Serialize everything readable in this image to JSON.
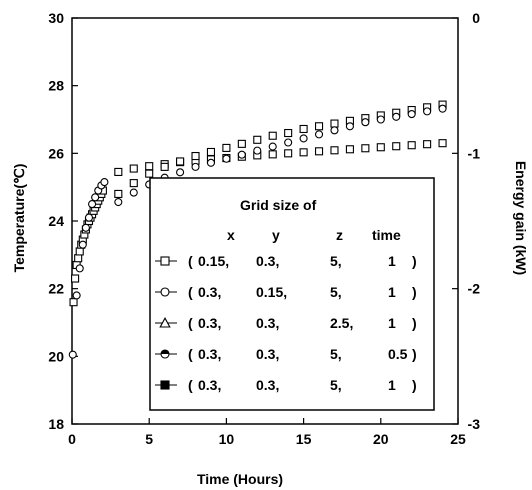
{
  "chart_data": {
    "type": "scatter",
    "xlabel": "Time (Hours)",
    "ylabel_left": "Temperature(℃)",
    "ylabel_right": "Energy  gain (kW)",
    "xlim": [
      0,
      25
    ],
    "ylim_left": [
      18,
      30
    ],
    "ylim_right": [
      -3,
      0
    ],
    "x_ticks": [
      "0",
      "5",
      "10",
      "15",
      "20",
      "25"
    ],
    "y_left_ticks": [
      "18",
      "20",
      "22",
      "24",
      "26",
      "28",
      "30"
    ],
    "y_right_ticks": [
      "-3",
      "-2",
      "-1",
      "0"
    ],
    "grid": false,
    "legend": {
      "placement": "lower-right",
      "title": "Grid size of",
      "header": [
        "x",
        "y",
        "z",
        "time"
      ],
      "rows": [
        {
          "marker": "square-open",
          "open": "(",
          "x": "0.15,",
          "y": "0.3,",
          "z": "5,",
          "t": "1",
          "close": ")"
        },
        {
          "marker": "circle-open",
          "open": "(",
          "x": "0.3,",
          "y": "0.15,",
          "z": "5,",
          "t": "1",
          "close": ")"
        },
        {
          "marker": "triangle-open",
          "open": "(",
          "x": "0.3,",
          "y": "0.3,",
          "z": "2.5,",
          "t": "1",
          "close": ")"
        },
        {
          "marker": "circle-half",
          "open": "(",
          "x": "0.3,",
          "y": "0.3,",
          "z": "5,",
          "t": "0.5",
          "close": ")"
        },
        {
          "marker": "square-filled",
          "open": "(",
          "x": "0.3,",
          "y": "0.3,",
          "z": "5,",
          "t": "1",
          "close": ")"
        }
      ]
    },
    "series": [
      {
        "marker": "square-open",
        "axis": "left",
        "x": [
          0.1,
          0.2,
          0.3,
          0.4,
          0.5,
          0.6,
          0.7,
          0.8,
          0.9,
          1.0,
          1.1,
          1.2,
          1.3,
          1.4,
          1.5,
          1.6,
          1.7,
          1.8,
          1.9,
          2,
          3,
          4,
          5,
          6,
          7,
          8,
          9,
          10,
          11,
          12,
          13,
          14,
          15,
          16,
          17,
          18,
          19,
          20,
          21,
          22,
          23,
          24
        ],
        "y": [
          21.6,
          22.3,
          22.7,
          22.9,
          23.1,
          23.3,
          23.45,
          23.6,
          23.75,
          23.9,
          24.0,
          24.1,
          24.2,
          24.3,
          24.4,
          24.5,
          24.6,
          24.7,
          24.8,
          24.9,
          25.45,
          25.55,
          25.62,
          25.68,
          25.74,
          25.78,
          25.82,
          25.86,
          25.9,
          25.94,
          25.97,
          26.0,
          26.03,
          26.06,
          26.09,
          26.12,
          26.15,
          26.18,
          26.21,
          26.24,
          26.27,
          26.3
        ]
      },
      {
        "marker": "circle-open",
        "axis": "left",
        "x": [
          0.05,
          0.3,
          0.5,
          0.7,
          0.9,
          1.1,
          1.3,
          1.5,
          1.7,
          1.9,
          2.1
        ],
        "y": [
          20.05,
          21.8,
          22.6,
          23.3,
          23.8,
          24.1,
          24.5,
          24.7,
          24.9,
          25.05,
          25.15
        ]
      },
      {
        "marker": "square-open",
        "axis": "right",
        "x": [
          3,
          4,
          5,
          6,
          7,
          8,
          9,
          10,
          11,
          12,
          13,
          14,
          15,
          16,
          17,
          18,
          19,
          20,
          21,
          22,
          23,
          24
        ],
        "y": [
          -1.3,
          -1.22,
          -1.15,
          -1.1,
          -1.06,
          -1.02,
          -0.99,
          -0.96,
          -0.93,
          -0.9,
          -0.87,
          -0.85,
          -0.82,
          -0.8,
          -0.78,
          -0.76,
          -0.74,
          -0.72,
          -0.7,
          -0.68,
          -0.66,
          -0.64
        ]
      },
      {
        "marker": "circle-open",
        "axis": "right",
        "x": [
          3,
          4,
          5,
          6,
          7,
          8,
          9,
          10,
          11,
          12,
          13,
          14,
          15,
          16,
          17,
          18,
          19,
          20,
          21,
          22,
          23,
          24
        ],
        "y": [
          -1.36,
          -1.29,
          -1.23,
          -1.18,
          -1.14,
          -1.1,
          -1.07,
          -1.04,
          -1.01,
          -0.98,
          -0.95,
          -0.92,
          -0.89,
          -0.86,
          -0.83,
          -0.8,
          -0.77,
          -0.75,
          -0.73,
          -0.71,
          -0.69,
          -0.67
        ]
      }
    ]
  }
}
